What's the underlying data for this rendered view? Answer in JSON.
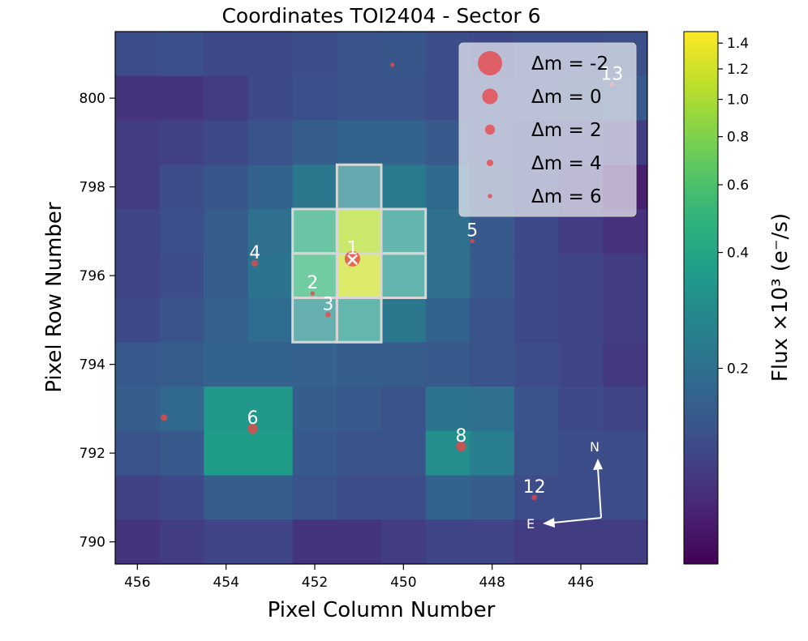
{
  "chart_data": {
    "type": "heatmap",
    "title": "Coordinates TOI2404 - Sector 6",
    "xlabel": "Pixel Column Number",
    "ylabel": "Pixel Row Number",
    "xlim": [
      456.5,
      444.5
    ],
    "ylim": [
      789.5,
      801.5
    ],
    "xticks": [
      456,
      454,
      452,
      450,
      448,
      446
    ],
    "yticks": [
      790,
      792,
      794,
      796,
      798,
      800
    ],
    "rows": [
      801,
      800,
      799,
      798,
      797,
      796,
      795,
      794,
      793,
      792,
      791,
      790
    ],
    "columns": [
      456,
      455,
      454,
      453,
      452,
      451,
      450,
      449,
      448,
      447,
      446,
      445
    ],
    "flux_e3": [
      [
        0.13,
        0.135,
        0.125,
        0.125,
        0.13,
        0.14,
        0.145,
        0.13,
        0.125,
        0.13,
        0.13,
        0.135
      ],
      [
        0.1,
        0.1,
        0.11,
        0.125,
        0.135,
        0.14,
        0.14,
        0.13,
        0.13,
        0.13,
        0.14,
        0.15
      ],
      [
        0.11,
        0.115,
        0.125,
        0.14,
        0.16,
        0.17,
        0.17,
        0.15,
        0.13,
        0.125,
        0.12,
        0.11
      ],
      [
        0.11,
        0.13,
        0.145,
        0.17,
        0.22,
        0.27,
        0.23,
        0.18,
        0.14,
        0.125,
        0.105,
        0.082
      ],
      [
        0.12,
        0.135,
        0.155,
        0.2,
        0.45,
        1.05,
        0.33,
        0.2,
        0.15,
        0.125,
        0.11,
        0.097
      ],
      [
        0.12,
        0.13,
        0.16,
        0.21,
        0.52,
        1.2,
        0.32,
        0.2,
        0.15,
        0.125,
        0.12,
        0.11
      ],
      [
        0.125,
        0.14,
        0.165,
        0.19,
        0.3,
        0.34,
        0.22,
        0.17,
        0.14,
        0.125,
        0.12,
        0.11
      ],
      [
        0.15,
        0.155,
        0.17,
        0.17,
        0.165,
        0.16,
        0.155,
        0.15,
        0.14,
        0.13,
        0.12,
        0.105
      ],
      [
        0.16,
        0.18,
        0.34,
        0.34,
        0.16,
        0.15,
        0.14,
        0.21,
        0.2,
        0.14,
        0.125,
        0.12
      ],
      [
        0.14,
        0.15,
        0.36,
        0.36,
        0.15,
        0.14,
        0.14,
        0.3,
        0.24,
        0.14,
        0.13,
        0.13
      ],
      [
        0.115,
        0.125,
        0.16,
        0.16,
        0.14,
        0.13,
        0.13,
        0.17,
        0.16,
        0.13,
        0.13,
        0.13
      ],
      [
        0.1,
        0.11,
        0.12,
        0.12,
        0.1,
        0.1,
        0.11,
        0.12,
        0.12,
        0.11,
        0.11,
        0.11
      ]
    ],
    "aperture_pixels": [
      [
        451,
        798
      ],
      [
        452,
        797
      ],
      [
        451,
        797
      ],
      [
        450,
        797
      ],
      [
        452,
        796
      ],
      [
        451,
        796
      ],
      [
        450,
        796
      ],
      [
        452,
        795
      ],
      [
        451,
        795
      ]
    ],
    "stars": [
      {
        "label": "1",
        "col": 451.15,
        "row": 796.38,
        "dm": 0
      },
      {
        "label": "2",
        "col": 452.05,
        "row": 795.6,
        "dm": 6
      },
      {
        "label": "3",
        "col": 451.7,
        "row": 795.12,
        "dm": 5
      },
      {
        "label": "4",
        "col": 453.35,
        "row": 796.28,
        "dm": 4
      },
      {
        "label": "5",
        "col": 448.45,
        "row": 796.78,
        "dm": 6
      },
      {
        "label": "6",
        "col": 453.4,
        "row": 792.55,
        "dm": 2
      },
      {
        "label": "8",
        "col": 448.7,
        "row": 792.15,
        "dm": 2
      },
      {
        "label": "12",
        "col": 447.05,
        "row": 791.0,
        "dm": 5
      },
      {
        "label": "13",
        "col": 445.3,
        "row": 800.3,
        "dm": 6
      },
      {
        "label": "",
        "col": 455.4,
        "row": 792.8,
        "dm": 4
      },
      {
        "label": "",
        "col": 450.25,
        "row": 800.75,
        "dm": 6
      }
    ],
    "target_marker": "×",
    "legend": {
      "position": "top-right",
      "entries": [
        {
          "dm": -2,
          "label_prefix": "Δm =",
          "value": "-2"
        },
        {
          "dm": 0,
          "label_prefix": "Δm =",
          "value": "0"
        },
        {
          "dm": 2,
          "label_prefix": "Δm =",
          "value": "2"
        },
        {
          "dm": 4,
          "label_prefix": "Δm =",
          "value": "4"
        },
        {
          "dm": 6,
          "label_prefix": "Δm =",
          "value": "6"
        }
      ]
    },
    "compass": {
      "north": "N",
      "east": "E"
    },
    "colorbar": {
      "label": "Flux ×10³ (e⁻/s)",
      "scale": "log",
      "vmin": 0.062,
      "vmax": 1.5,
      "ticks": [
        1.4,
        1.2,
        1.0,
        0.8,
        0.6,
        0.4,
        0.2
      ],
      "tick_labels": [
        "1.4",
        "1.2",
        "1.0",
        "0.8",
        "0.6",
        "0.4",
        "0.2"
      ]
    },
    "colors": {
      "star": "#e8474a",
      "aperture": "#d6d6d6",
      "compass": "#ffffff"
    }
  }
}
